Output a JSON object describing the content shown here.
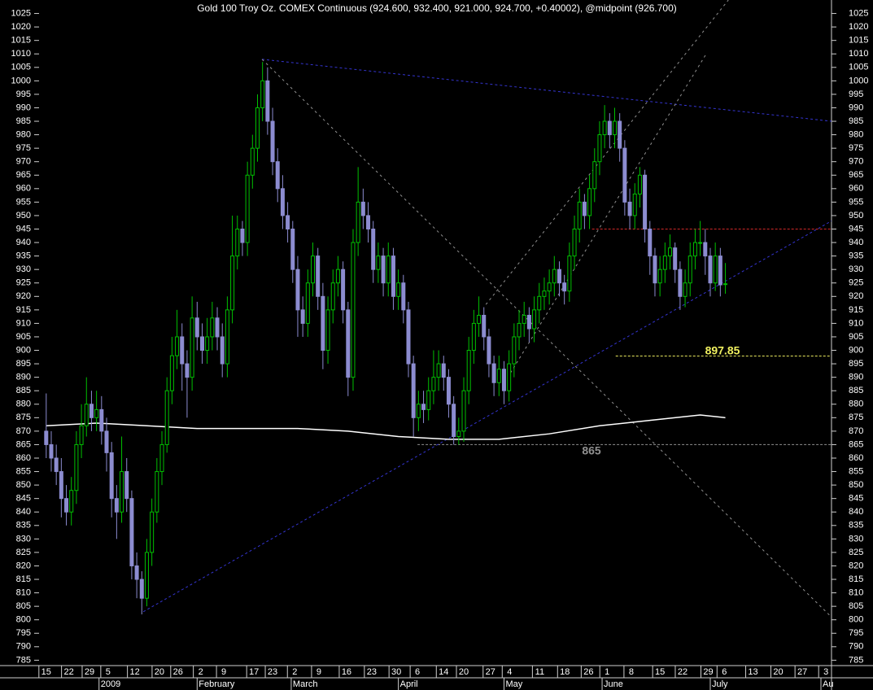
{
  "chart_data": {
    "type": "candlestick",
    "title": "Gold 100 Troy Oz. COMEX Continuous (924.600, 932.400, 921.000, 924.700, +0.40002), @midpoint (926.700)",
    "xlim": [
      -1.1,
      156.1
    ],
    "ylim": [
      783,
      1030
    ],
    "yticks": [
      785,
      790,
      795,
      800,
      805,
      810,
      815,
      820,
      825,
      830,
      835,
      840,
      845,
      850,
      855,
      860,
      865,
      870,
      875,
      880,
      885,
      890,
      895,
      900,
      905,
      910,
      915,
      920,
      925,
      930,
      935,
      940,
      945,
      950,
      955,
      960,
      965,
      970,
      975,
      980,
      985,
      990,
      995,
      1000,
      1005,
      1010,
      1015,
      1020,
      1025
    ],
    "xticks": [
      {
        "value": 0,
        "label": "15"
      },
      {
        "value": 4.5,
        "label": "22"
      },
      {
        "value": 8.6,
        "label": "29"
      },
      {
        "value": 12.3,
        "label": "5"
      },
      {
        "value": 17.6,
        "label": "12"
      },
      {
        "value": 22.5,
        "label": "20"
      },
      {
        "value": 26.2,
        "label": "26"
      },
      {
        "value": 30.7,
        "label": "2"
      },
      {
        "value": 35.3,
        "label": "9"
      },
      {
        "value": 41.3,
        "label": "17"
      },
      {
        "value": 45,
        "label": "23"
      },
      {
        "value": 49.4,
        "label": "2"
      },
      {
        "value": 54.2,
        "label": "9"
      },
      {
        "value": 59.7,
        "label": "16"
      },
      {
        "value": 64.7,
        "label": "23"
      },
      {
        "value": 69.6,
        "label": "30"
      },
      {
        "value": 73.8,
        "label": "6"
      },
      {
        "value": 79,
        "label": "14"
      },
      {
        "value": 83,
        "label": "20"
      },
      {
        "value": 88.3,
        "label": "27"
      },
      {
        "value": 92.1,
        "label": "4"
      },
      {
        "value": 98.1,
        "label": "11"
      },
      {
        "value": 103.1,
        "label": "18"
      },
      {
        "value": 107.8,
        "label": "26"
      },
      {
        "value": 111.5,
        "label": "1"
      },
      {
        "value": 116.3,
        "label": "8"
      },
      {
        "value": 122,
        "label": "15"
      },
      {
        "value": 126.5,
        "label": "22"
      },
      {
        "value": 131.6,
        "label": "29"
      },
      {
        "value": 134.8,
        "label": "6"
      },
      {
        "value": 140.5,
        "label": "13"
      },
      {
        "value": 145.5,
        "label": "20"
      },
      {
        "value": 150.3,
        "label": "27"
      },
      {
        "value": 155,
        "label": "3"
      }
    ],
    "month_ticks": [
      {
        "value": 10.5,
        "label": "2009"
      },
      {
        "value": 30,
        "label": "February"
      },
      {
        "value": 48.7,
        "label": "March"
      },
      {
        "value": 70,
        "label": "April"
      },
      {
        "value": 91,
        "label": "May"
      },
      {
        "value": 110.5,
        "label": "June"
      },
      {
        "value": 132,
        "label": "July"
      },
      {
        "value": 154,
        "label": "Au"
      }
    ],
    "up_color": "#00c000",
    "down_color": "#8c8cd0",
    "candles": {
      "x": [
        0,
        1,
        2,
        3,
        4,
        5,
        6,
        7,
        8,
        9,
        10,
        11,
        12,
        13,
        14,
        15,
        16,
        17,
        18,
        19,
        20,
        21,
        22,
        23,
        24,
        25,
        26,
        27,
        28,
        29,
        30,
        31,
        32,
        33,
        34,
        35,
        36,
        37,
        38,
        39,
        40,
        41,
        42,
        43,
        44,
        45,
        46,
        47,
        48,
        49,
        50,
        51,
        52,
        53,
        54,
        55,
        56,
        57,
        58,
        59,
        60,
        61,
        62,
        63,
        64,
        65,
        66,
        67,
        68,
        69,
        70,
        71,
        72,
        73,
        74,
        75,
        76,
        77,
        78,
        79,
        80,
        81,
        82,
        83,
        84,
        85,
        86,
        87,
        88,
        89,
        90,
        91,
        92,
        93,
        94,
        95,
        96,
        97,
        98,
        99,
        100,
        101,
        102,
        103,
        104,
        105,
        106,
        107,
        108,
        109,
        110,
        111,
        112,
        113,
        114,
        115,
        116,
        117,
        118,
        119,
        120,
        121,
        122,
        123,
        124,
        125,
        126,
        127,
        128,
        129,
        130,
        131,
        132,
        133,
        134,
        135
      ],
      "open": [
        870,
        865,
        860,
        855,
        845,
        840,
        848,
        865,
        872,
        880,
        875,
        878,
        870,
        862,
        845,
        840,
        855,
        845,
        820,
        815,
        808,
        825,
        840,
        855,
        865,
        885,
        898,
        905,
        895,
        890,
        912,
        905,
        900,
        905,
        912,
        905,
        895,
        915,
        935,
        945,
        940,
        965,
        975,
        990,
        1000,
        985,
        970,
        960,
        950,
        945,
        930,
        915,
        910,
        925,
        935,
        920,
        900,
        915,
        925,
        930,
        915,
        890,
        940,
        955,
        950,
        945,
        930,
        935,
        925,
        935,
        920,
        925,
        915,
        895,
        875,
        880,
        878,
        885,
        890,
        895,
        890,
        880,
        868,
        870,
        885,
        900,
        910,
        913,
        905,
        895,
        888,
        893,
        885,
        895,
        905,
        910,
        913,
        908,
        915,
        920,
        922,
        925,
        930,
        925,
        922,
        935,
        945,
        955,
        950,
        960,
        970,
        980,
        985,
        980,
        985,
        975,
        955,
        950,
        958,
        965,
        945,
        935,
        925,
        930,
        935,
        938,
        930,
        920,
        925,
        935,
        940,
        940,
        935,
        925,
        935,
        924.6
      ],
      "high": [
        884,
        870,
        865,
        860,
        850,
        853,
        870,
        880,
        890,
        885,
        885,
        883,
        875,
        866,
        850,
        868,
        860,
        848,
        825,
        818,
        830,
        845,
        860,
        870,
        890,
        905,
        915,
        910,
        900,
        920,
        918,
        910,
        912,
        918,
        916,
        910,
        920,
        950,
        950,
        948,
        970,
        980,
        995,
        1007,
        1005,
        990,
        975,
        965,
        955,
        948,
        935,
        920,
        930,
        940,
        938,
        925,
        920,
        930,
        935,
        933,
        918,
        945,
        968,
        960,
        955,
        948,
        940,
        938,
        940,
        938,
        930,
        928,
        918,
        898,
        885,
        885,
        890,
        900,
        900,
        898,
        893,
        883,
        875,
        890,
        905,
        915,
        920,
        916,
        908,
        898,
        898,
        896,
        900,
        910,
        915,
        918,
        916,
        920,
        925,
        927,
        930,
        935,
        933,
        928,
        940,
        950,
        960,
        958,
        965,
        975,
        985,
        991,
        988,
        990,
        988,
        978,
        960,
        962,
        968,
        967,
        948,
        938,
        935,
        940,
        943,
        940,
        933,
        930,
        940,
        945,
        948,
        945,
        938,
        940,
        938,
        932.4
      ],
      "low": [
        860,
        855,
        850,
        838,
        835,
        835,
        843,
        860,
        868,
        870,
        870,
        865,
        855,
        838,
        830,
        836,
        840,
        815,
        808,
        802,
        805,
        820,
        836,
        850,
        862,
        880,
        893,
        885,
        875,
        885,
        900,
        895,
        895,
        900,
        900,
        890,
        890,
        910,
        930,
        935,
        935,
        960,
        970,
        985,
        980,
        965,
        955,
        945,
        940,
        925,
        905,
        905,
        905,
        920,
        915,
        893,
        895,
        910,
        920,
        910,
        883,
        885,
        935,
        945,
        940,
        925,
        925,
        920,
        920,
        915,
        915,
        910,
        890,
        868,
        870,
        873,
        874,
        880,
        885,
        885,
        875,
        865,
        865,
        866,
        880,
        895,
        905,
        900,
        890,
        883,
        883,
        880,
        881,
        890,
        900,
        905,
        903,
        903,
        910,
        915,
        917,
        920,
        920,
        917,
        918,
        930,
        940,
        945,
        945,
        955,
        965,
        975,
        975,
        975,
        970,
        950,
        945,
        945,
        953,
        940,
        928,
        920,
        920,
        925,
        930,
        925,
        915,
        916,
        920,
        930,
        935,
        928,
        920,
        922,
        920,
        921
      ],
      "close": [
        865,
        860,
        855,
        845,
        840,
        848,
        865,
        872,
        880,
        875,
        878,
        870,
        862,
        845,
        840,
        855,
        845,
        820,
        815,
        808,
        825,
        840,
        855,
        865,
        885,
        898,
        905,
        895,
        890,
        912,
        905,
        900,
        905,
        912,
        905,
        895,
        915,
        935,
        945,
        940,
        965,
        975,
        990,
        1000,
        985,
        970,
        960,
        950,
        945,
        930,
        915,
        910,
        925,
        935,
        920,
        900,
        915,
        925,
        930,
        915,
        890,
        940,
        955,
        950,
        945,
        930,
        935,
        925,
        935,
        920,
        925,
        915,
        895,
        875,
        880,
        878,
        885,
        890,
        895,
        890,
        880,
        868,
        870,
        885,
        900,
        910,
        913,
        905,
        895,
        888,
        893,
        885,
        895,
        905,
        910,
        913,
        908,
        915,
        920,
        922,
        925,
        930,
        925,
        922,
        935,
        945,
        955,
        950,
        960,
        970,
        980,
        985,
        980,
        985,
        975,
        955,
        950,
        958,
        965,
        945,
        935,
        925,
        930,
        935,
        938,
        930,
        920,
        925,
        935,
        940,
        940,
        935,
        925,
        935,
        924.3,
        924.7
      ]
    },
    "average": {
      "color": "#ffffff",
      "x": [
        0,
        10,
        20,
        30,
        40,
        50,
        60,
        70,
        80,
        90,
        100,
        110,
        120,
        130,
        135
      ],
      "values": [
        872,
        873,
        872,
        871,
        871,
        871,
        870,
        868,
        867,
        867,
        869,
        872,
        874,
        876,
        875
      ]
    },
    "trendlines": [
      {
        "color": "#3434d0",
        "dash": "3,3",
        "x": [
          19.3,
          156.1
        ],
        "y": [
          803,
          948
        ]
      },
      {
        "color": "#3434d0",
        "dash": "3,3",
        "x": [
          42.9,
          156.1
        ],
        "y": [
          1008,
          985
        ]
      },
      {
        "color": "#909090",
        "dash": "3,4",
        "x": [
          42.9,
          156.1
        ],
        "y": [
          1008,
          801
        ]
      },
      {
        "color": "#909090",
        "dash": "3,4",
        "x": [
          87.4,
          135.6
        ],
        "y": [
          917,
          1030
        ]
      },
      {
        "color": "#909090",
        "dash": "3,4",
        "x": [
          91.1,
          131.2
        ],
        "y": [
          888,
          1010
        ]
      }
    ],
    "levels": [
      {
        "value": 945,
        "from": 108.5,
        "color": "#d02828",
        "show_value": false
      },
      {
        "value": 897.85,
        "from": 113.2,
        "color": "#f0f060",
        "show_value": true
      },
      {
        "value": 865,
        "from": 73.8,
        "color": "#909090",
        "show_value": true
      }
    ]
  }
}
